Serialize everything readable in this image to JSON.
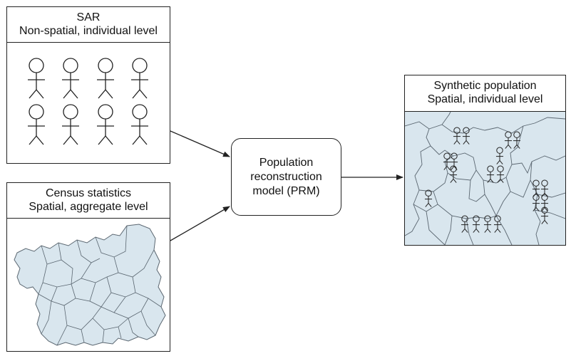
{
  "sar": {
    "line1": "SAR",
    "line2": "Non-spatial, individual level"
  },
  "census": {
    "line1": "Census statistics",
    "line2": "Spatial, aggregate level"
  },
  "prm": {
    "line1": "Population",
    "line2": "reconstruction",
    "line3": "model (PRM)"
  },
  "synthetic": {
    "line1": "Synthetic population",
    "line2": "Spatial, individual level"
  },
  "colors": {
    "map_fill": "#d9e6ee",
    "map_border": "#5a6670",
    "line": "#222222"
  },
  "icons": {
    "person": "stick-figure-icon",
    "map": "region-map-icon"
  },
  "counts": {
    "sar_people": 8,
    "synthetic_people": 24
  }
}
